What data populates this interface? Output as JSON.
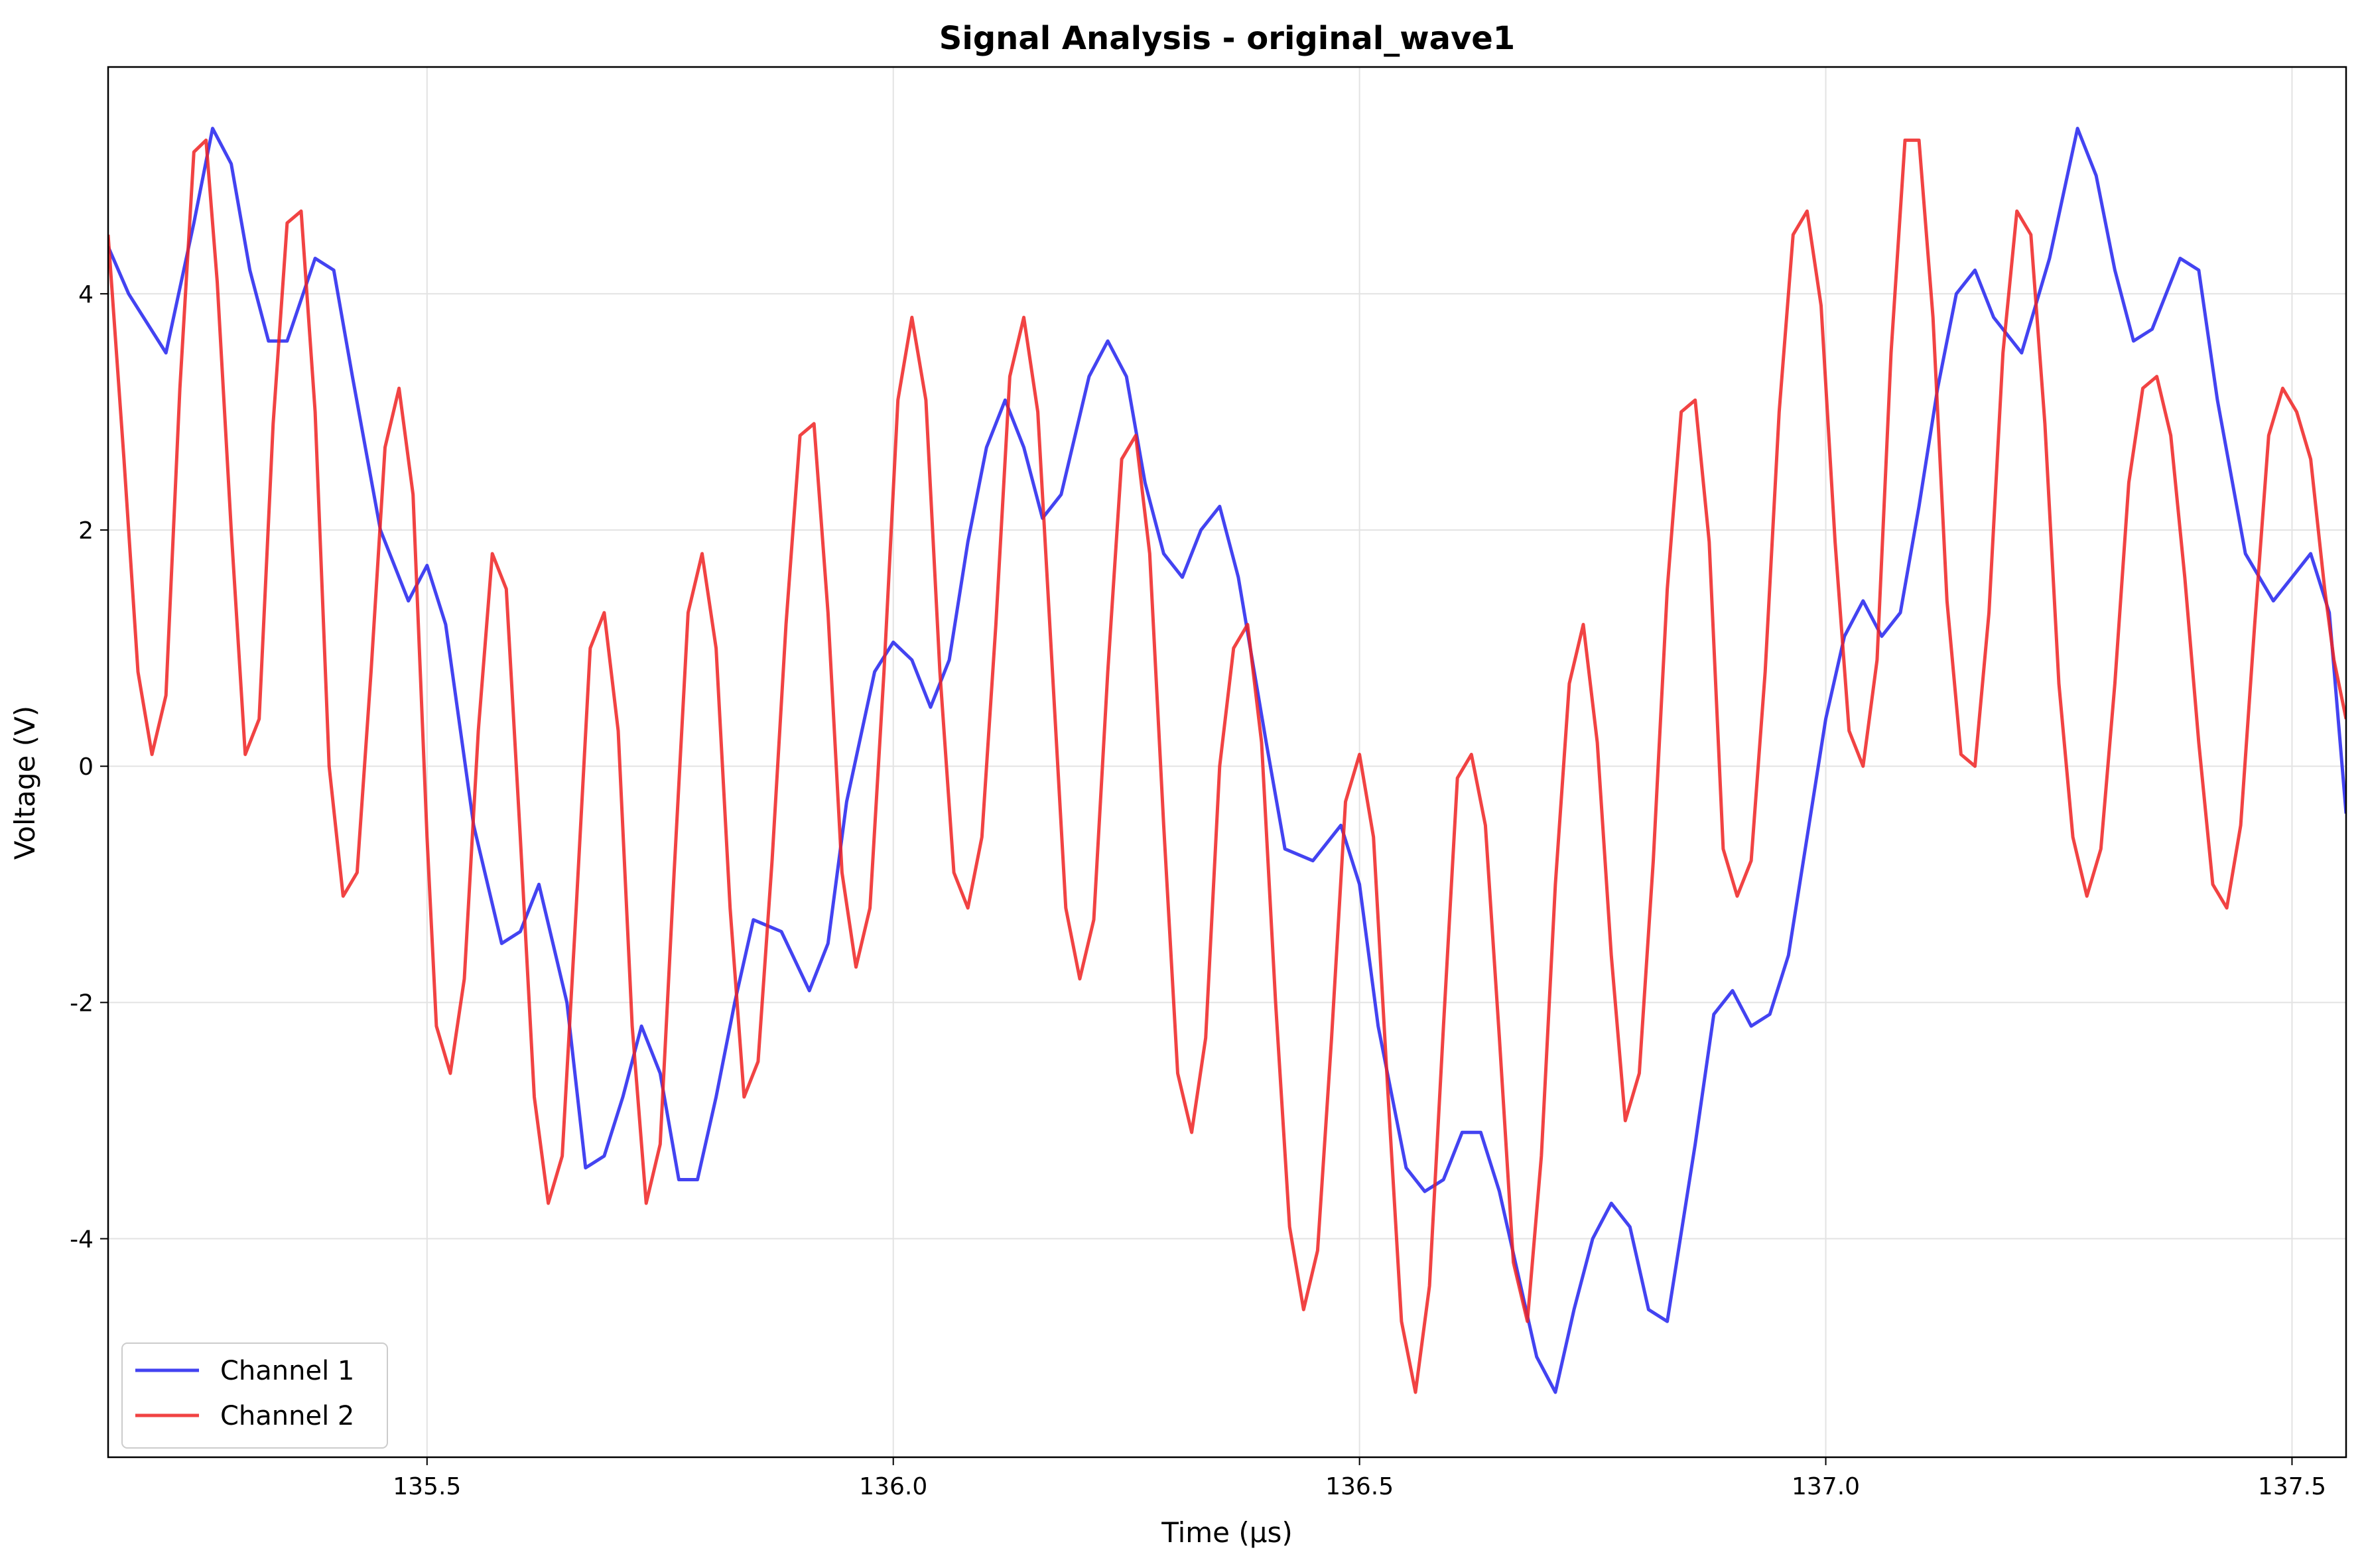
{
  "chart_data": {
    "type": "line",
    "title": "Signal Analysis - original_wave1",
    "xlabel": "Time (μs)",
    "ylabel": "Voltage (V)",
    "xlim": [
      135.158,
      137.558
    ],
    "ylim": [
      -5.85,
      5.92
    ],
    "xticks": [
      135.5,
      136.0,
      136.5,
      137.0,
      137.5
    ],
    "xtick_labels": [
      "135.5",
      "136.0",
      "136.5",
      "137.0",
      "137.5"
    ],
    "yticks": [
      -4,
      -2,
      0,
      2,
      4
    ],
    "ytick_labels": [
      "-4",
      "-2",
      "0",
      "2",
      "4"
    ],
    "grid": true,
    "legend_position": "lower-left",
    "series": [
      {
        "name": "Channel 1",
        "color": "#2222ee",
        "x": [
          135.158,
          135.18,
          135.22,
          135.25,
          135.27,
          135.29,
          135.31,
          135.33,
          135.35,
          135.38,
          135.4,
          135.42,
          135.45,
          135.48,
          135.5,
          135.52,
          135.55,
          135.58,
          135.6,
          135.62,
          135.65,
          135.67,
          135.69,
          135.71,
          135.73,
          135.75,
          135.77,
          135.79,
          135.81,
          135.83,
          135.85,
          135.88,
          135.91,
          135.93,
          135.95,
          135.98,
          136.0,
          136.02,
          136.04,
          136.06,
          136.08,
          136.1,
          136.12,
          136.14,
          136.16,
          136.18,
          136.21,
          136.23,
          136.25,
          136.27,
          136.29,
          136.31,
          136.33,
          136.35,
          136.37,
          136.4,
          136.42,
          136.45,
          136.48,
          136.5,
          136.52,
          136.55,
          136.57,
          136.59,
          136.61,
          136.63,
          136.65,
          136.67,
          136.69,
          136.71,
          136.73,
          136.75,
          136.77,
          136.79,
          136.81,
          136.83,
          136.86,
          136.88,
          136.9,
          136.92,
          136.94,
          136.96,
          136.98,
          137.0,
          137.02,
          137.04,
          137.06,
          137.08,
          137.1,
          137.12,
          137.14,
          137.16,
          137.18,
          137.21,
          137.24,
          137.27,
          137.29,
          137.31,
          137.33,
          137.35,
          137.38,
          137.4,
          137.42,
          137.45,
          137.48,
          137.5,
          137.52,
          137.54,
          137.558
        ],
        "values": [
          4.4,
          4.0,
          3.5,
          4.6,
          5.4,
          5.1,
          4.2,
          3.6,
          3.6,
          4.3,
          4.2,
          3.3,
          2.0,
          1.4,
          1.7,
          1.2,
          -0.5,
          -1.5,
          -1.4,
          -1.0,
          -2.0,
          -3.4,
          -3.3,
          -2.8,
          -2.2,
          -2.6,
          -3.5,
          -3.5,
          -2.8,
          -2.0,
          -1.3,
          -1.4,
          -1.9,
          -1.5,
          -0.3,
          0.8,
          1.05,
          0.9,
          0.5,
          0.9,
          1.9,
          2.7,
          3.1,
          2.7,
          2.1,
          2.3,
          3.3,
          3.6,
          3.3,
          2.4,
          1.8,
          1.6,
          2.0,
          2.2,
          1.6,
          0.2,
          -0.7,
          -0.8,
          -0.5,
          -1.0,
          -2.2,
          -3.4,
          -3.6,
          -3.5,
          -3.1,
          -3.1,
          -3.6,
          -4.3,
          -5.0,
          -5.3,
          -4.6,
          -4.0,
          -3.7,
          -3.9,
          -4.6,
          -4.7,
          -3.2,
          -2.1,
          -1.9,
          -2.2,
          -2.1,
          -1.6,
          -0.6,
          0.4,
          1.1,
          1.4,
          1.1,
          1.3,
          2.2,
          3.2,
          4.0,
          4.2,
          3.8,
          3.5,
          4.3,
          5.4,
          5.0,
          4.2,
          3.6,
          3.7,
          4.3,
          4.2,
          3.1,
          1.8,
          1.4,
          1.6,
          1.8,
          1.3,
          -0.4
        ]
      },
      {
        "name": "Channel 2",
        "color": "#ee2222",
        "x": [
          135.158,
          135.175,
          135.19,
          135.205,
          135.22,
          135.235,
          135.25,
          135.263,
          135.275,
          135.29,
          135.305,
          135.32,
          135.335,
          135.35,
          135.365,
          135.38,
          135.395,
          135.41,
          135.425,
          135.44,
          135.455,
          135.47,
          135.485,
          135.5,
          135.51,
          135.525,
          135.54,
          135.555,
          135.57,
          135.585,
          135.6,
          135.615,
          135.63,
          135.645,
          135.66,
          135.675,
          135.69,
          135.705,
          135.72,
          135.735,
          135.75,
          135.765,
          135.78,
          135.795,
          135.81,
          135.825,
          135.84,
          135.855,
          135.87,
          135.885,
          135.9,
          135.915,
          135.93,
          135.945,
          135.96,
          135.975,
          135.99,
          136.005,
          136.02,
          136.035,
          136.05,
          136.065,
          136.08,
          136.095,
          136.11,
          136.125,
          136.14,
          136.155,
          136.17,
          136.185,
          136.2,
          136.215,
          136.23,
          136.245,
          136.26,
          136.275,
          136.29,
          136.305,
          136.32,
          136.335,
          136.35,
          136.365,
          136.38,
          136.395,
          136.41,
          136.425,
          136.44,
          136.455,
          136.47,
          136.485,
          136.5,
          136.515,
          136.53,
          136.545,
          136.56,
          136.575,
          136.59,
          136.605,
          136.62,
          136.635,
          136.65,
          136.665,
          136.68,
          136.695,
          136.71,
          136.725,
          136.74,
          136.755,
          136.77,
          136.785,
          136.8,
          136.815,
          136.83,
          136.845,
          136.86,
          136.875,
          136.89,
          136.905,
          136.92,
          136.935,
          136.95,
          136.965,
          136.98,
          136.995,
          137.01,
          137.025,
          137.04,
          137.055,
          137.07,
          137.085,
          137.1,
          137.115,
          137.13,
          137.145,
          137.16,
          137.175,
          137.19,
          137.205,
          137.22,
          137.235,
          137.25,
          137.265,
          137.28,
          137.295,
          137.31,
          137.325,
          137.34,
          137.355,
          137.37,
          137.385,
          137.4,
          137.415,
          137.43,
          137.445,
          137.46,
          137.475,
          137.49,
          137.505,
          137.52,
          137.535,
          137.545,
          137.558
        ],
        "values": [
          4.5,
          2.6,
          0.8,
          0.1,
          0.6,
          3.2,
          5.2,
          5.3,
          4.1,
          2.0,
          0.1,
          0.4,
          2.9,
          4.6,
          4.7,
          3.0,
          0.0,
          -1.1,
          -0.9,
          0.8,
          2.7,
          3.2,
          2.3,
          -0.6,
          -2.2,
          -2.6,
          -1.8,
          0.3,
          1.8,
          1.5,
          -0.6,
          -2.8,
          -3.7,
          -3.3,
          -1.2,
          1.0,
          1.3,
          0.3,
          -2.2,
          -3.7,
          -3.2,
          -0.9,
          1.3,
          1.8,
          1.0,
          -1.2,
          -2.8,
          -2.5,
          -0.8,
          1.2,
          2.8,
          2.9,
          1.3,
          -0.9,
          -1.7,
          -1.2,
          0.8,
          3.1,
          3.8,
          3.1,
          0.8,
          -0.9,
          -1.2,
          -0.6,
          1.2,
          3.3,
          3.8,
          3.0,
          0.9,
          -1.2,
          -1.8,
          -1.3,
          0.8,
          2.6,
          2.8,
          1.8,
          -0.5,
          -2.6,
          -3.1,
          -2.3,
          0.0,
          1.0,
          1.2,
          0.2,
          -2.0,
          -3.9,
          -4.6,
          -4.1,
          -2.3,
          -0.3,
          0.1,
          -0.6,
          -2.7,
          -4.7,
          -5.3,
          -4.4,
          -2.2,
          -0.1,
          0.1,
          -0.5,
          -2.3,
          -4.2,
          -4.7,
          -3.3,
          -1.0,
          0.7,
          1.2,
          0.2,
          -1.6,
          -3.0,
          -2.6,
          -0.8,
          1.5,
          3.0,
          3.1,
          1.9,
          -0.7,
          -1.1,
          -0.8,
          0.8,
          3.0,
          4.5,
          4.7,
          3.9,
          1.9,
          0.3,
          0.0,
          0.9,
          3.5,
          5.3,
          5.3,
          3.8,
          1.4,
          0.1,
          0.0,
          1.3,
          3.5,
          4.7,
          4.5,
          2.9,
          0.7,
          -0.6,
          -1.1,
          -0.7,
          0.7,
          2.4,
          3.2,
          3.3,
          2.8,
          1.6,
          0.2,
          -1.0,
          -1.2,
          -0.5,
          1.2,
          2.8,
          3.2,
          3.0,
          2.6,
          1.5,
          0.9,
          0.4
        ]
      }
    ]
  }
}
